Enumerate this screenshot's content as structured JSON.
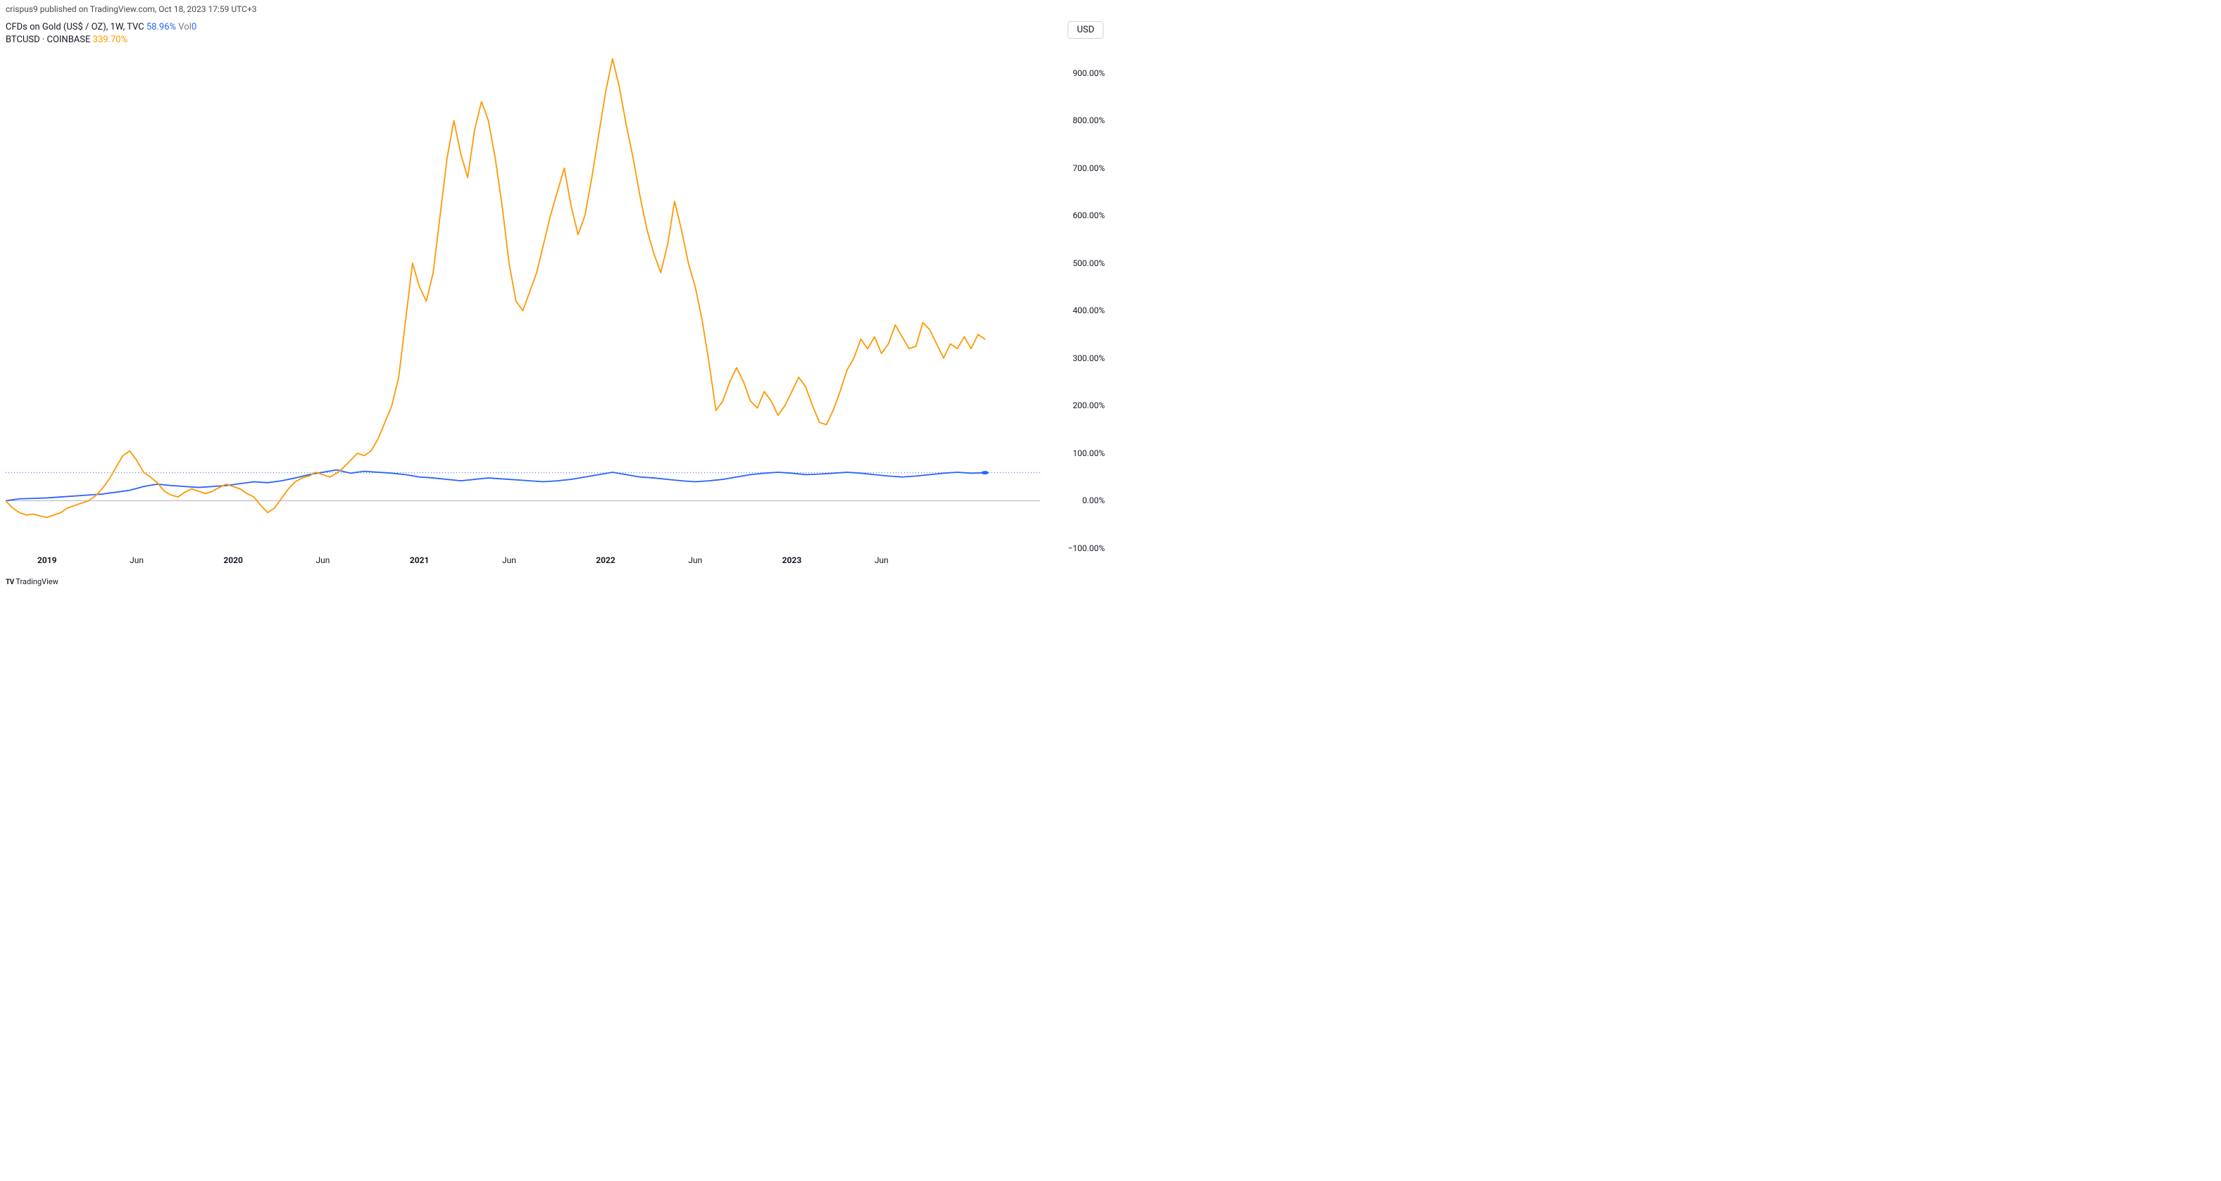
{
  "header": {
    "publish_text": "crispus9 published on TradingView.com, Oct 18, 2023 17:59 UTC+3"
  },
  "legend": {
    "row1_label": "CFDs on Gold (US$ / OZ), 1W, TVC",
    "row1_pct": "58.96%",
    "row1_vol_label": "Vol",
    "row1_vol_val": "0",
    "row2_label": "BTCUSD · COINBASE",
    "row2_pct": "339.70%"
  },
  "currency": "USD",
  "footer": "TradingView",
  "chart": {
    "type": "line",
    "background_color": "#ffffff",
    "grid_color": "#e0e3eb",
    "baseline_color": "#b2b5be",
    "baseline_value": 0,
    "reference_line_color": "#2962ff",
    "reference_line_dash": "1,3",
    "reference_value": 58.96,
    "y_axis": {
      "min": -100,
      "max": 950,
      "ticks": [
        -100,
        0,
        100,
        200,
        300,
        400,
        500,
        600,
        700,
        800,
        900
      ],
      "tick_labels": [
        "−100.00%",
        "0.00%",
        "100.00%",
        "200.00%",
        "300.00%",
        "400.00%",
        "500.00%",
        "600.00%",
        "700.00%",
        "800.00%",
        "900.00%"
      ],
      "label_fontsize": 12,
      "label_color": "#131722"
    },
    "x_axis": {
      "min": 0,
      "max": 300,
      "ticks": [
        {
          "pos": 12,
          "label": "2019",
          "bold": true
        },
        {
          "pos": 38,
          "label": "Jun",
          "bold": false
        },
        {
          "pos": 66,
          "label": "2020",
          "bold": true
        },
        {
          "pos": 92,
          "label": "Jun",
          "bold": false
        },
        {
          "pos": 120,
          "label": "2021",
          "bold": true
        },
        {
          "pos": 146,
          "label": "Jun",
          "bold": false
        },
        {
          "pos": 174,
          "label": "2022",
          "bold": true
        },
        {
          "pos": 200,
          "label": "Jun",
          "bold": false
        },
        {
          "pos": 228,
          "label": "2023",
          "bold": true
        },
        {
          "pos": 254,
          "label": "Jun",
          "bold": false
        }
      ],
      "label_fontsize": 12,
      "label_color": "#131722"
    },
    "series": [
      {
        "name": "Gold",
        "color": "#2962ff",
        "line_width": 1.8,
        "end_marker": true,
        "end_marker_size": 3.5,
        "data": [
          [
            0,
            0
          ],
          [
            4,
            4
          ],
          [
            8,
            5
          ],
          [
            12,
            6
          ],
          [
            16,
            8
          ],
          [
            20,
            10
          ],
          [
            24,
            12
          ],
          [
            28,
            14
          ],
          [
            32,
            18
          ],
          [
            36,
            22
          ],
          [
            40,
            30
          ],
          [
            44,
            35
          ],
          [
            48,
            32
          ],
          [
            52,
            30
          ],
          [
            56,
            28
          ],
          [
            60,
            30
          ],
          [
            64,
            32
          ],
          [
            68,
            36
          ],
          [
            72,
            40
          ],
          [
            76,
            38
          ],
          [
            80,
            42
          ],
          [
            84,
            48
          ],
          [
            88,
            55
          ],
          [
            92,
            60
          ],
          [
            96,
            65
          ],
          [
            100,
            58
          ],
          [
            104,
            62
          ],
          [
            108,
            60
          ],
          [
            112,
            58
          ],
          [
            116,
            55
          ],
          [
            120,
            50
          ],
          [
            124,
            48
          ],
          [
            128,
            45
          ],
          [
            132,
            42
          ],
          [
            136,
            45
          ],
          [
            140,
            48
          ],
          [
            144,
            46
          ],
          [
            148,
            44
          ],
          [
            152,
            42
          ],
          [
            156,
            40
          ],
          [
            160,
            42
          ],
          [
            164,
            45
          ],
          [
            168,
            50
          ],
          [
            172,
            55
          ],
          [
            176,
            60
          ],
          [
            180,
            55
          ],
          [
            184,
            50
          ],
          [
            188,
            48
          ],
          [
            192,
            45
          ],
          [
            196,
            42
          ],
          [
            200,
            40
          ],
          [
            204,
            42
          ],
          [
            208,
            45
          ],
          [
            212,
            50
          ],
          [
            216,
            55
          ],
          [
            220,
            58
          ],
          [
            224,
            60
          ],
          [
            228,
            58
          ],
          [
            232,
            55
          ],
          [
            236,
            56
          ],
          [
            240,
            58
          ],
          [
            244,
            60
          ],
          [
            248,
            58
          ],
          [
            252,
            55
          ],
          [
            256,
            52
          ],
          [
            260,
            50
          ],
          [
            264,
            52
          ],
          [
            268,
            55
          ],
          [
            272,
            58
          ],
          [
            276,
            60
          ],
          [
            280,
            58
          ],
          [
            284,
            58.96
          ]
        ]
      },
      {
        "name": "BTCUSD",
        "color": "#ff9800",
        "line_width": 1.8,
        "end_marker": false,
        "data": [
          [
            0,
            0
          ],
          [
            2,
            -15
          ],
          [
            4,
            -25
          ],
          [
            6,
            -30
          ],
          [
            8,
            -28
          ],
          [
            10,
            -32
          ],
          [
            12,
            -35
          ],
          [
            14,
            -30
          ],
          [
            16,
            -25
          ],
          [
            18,
            -15
          ],
          [
            20,
            -10
          ],
          [
            22,
            -5
          ],
          [
            24,
            0
          ],
          [
            26,
            10
          ],
          [
            28,
            25
          ],
          [
            30,
            45
          ],
          [
            32,
            70
          ],
          [
            34,
            95
          ],
          [
            36,
            105
          ],
          [
            38,
            85
          ],
          [
            40,
            60
          ],
          [
            42,
            50
          ],
          [
            44,
            38
          ],
          [
            46,
            20
          ],
          [
            48,
            12
          ],
          [
            50,
            8
          ],
          [
            52,
            18
          ],
          [
            54,
            25
          ],
          [
            56,
            20
          ],
          [
            58,
            15
          ],
          [
            60,
            20
          ],
          [
            62,
            28
          ],
          [
            64,
            35
          ],
          [
            66,
            30
          ],
          [
            68,
            25
          ],
          [
            70,
            15
          ],
          [
            72,
            8
          ],
          [
            74,
            -10
          ],
          [
            76,
            -25
          ],
          [
            78,
            -15
          ],
          [
            80,
            5
          ],
          [
            82,
            25
          ],
          [
            84,
            40
          ],
          [
            86,
            48
          ],
          [
            88,
            52
          ],
          [
            90,
            60
          ],
          [
            92,
            55
          ],
          [
            94,
            50
          ],
          [
            96,
            58
          ],
          [
            98,
            70
          ],
          [
            100,
            85
          ],
          [
            102,
            100
          ],
          [
            104,
            95
          ],
          [
            106,
            105
          ],
          [
            108,
            130
          ],
          [
            110,
            165
          ],
          [
            112,
            200
          ],
          [
            114,
            260
          ],
          [
            116,
            380
          ],
          [
            118,
            500
          ],
          [
            120,
            450
          ],
          [
            122,
            420
          ],
          [
            124,
            480
          ],
          [
            126,
            600
          ],
          [
            128,
            720
          ],
          [
            130,
            800
          ],
          [
            132,
            730
          ],
          [
            134,
            680
          ],
          [
            136,
            780
          ],
          [
            138,
            840
          ],
          [
            140,
            800
          ],
          [
            142,
            720
          ],
          [
            144,
            620
          ],
          [
            146,
            500
          ],
          [
            148,
            420
          ],
          [
            150,
            400
          ],
          [
            152,
            440
          ],
          [
            154,
            480
          ],
          [
            156,
            540
          ],
          [
            158,
            600
          ],
          [
            160,
            650
          ],
          [
            162,
            700
          ],
          [
            164,
            620
          ],
          [
            166,
            560
          ],
          [
            168,
            600
          ],
          [
            170,
            680
          ],
          [
            172,
            770
          ],
          [
            174,
            860
          ],
          [
            176,
            930
          ],
          [
            178,
            870
          ],
          [
            180,
            790
          ],
          [
            182,
            720
          ],
          [
            184,
            640
          ],
          [
            186,
            570
          ],
          [
            188,
            520
          ],
          [
            190,
            480
          ],
          [
            192,
            540
          ],
          [
            194,
            630
          ],
          [
            196,
            570
          ],
          [
            198,
            500
          ],
          [
            200,
            450
          ],
          [
            202,
            380
          ],
          [
            204,
            290
          ],
          [
            206,
            190
          ],
          [
            208,
            210
          ],
          [
            210,
            250
          ],
          [
            212,
            280
          ],
          [
            214,
            250
          ],
          [
            216,
            210
          ],
          [
            218,
            195
          ],
          [
            220,
            230
          ],
          [
            222,
            210
          ],
          [
            224,
            180
          ],
          [
            226,
            200
          ],
          [
            228,
            230
          ],
          [
            230,
            260
          ],
          [
            232,
            240
          ],
          [
            234,
            200
          ],
          [
            236,
            165
          ],
          [
            238,
            160
          ],
          [
            240,
            190
          ],
          [
            242,
            230
          ],
          [
            244,
            275
          ],
          [
            246,
            300
          ],
          [
            248,
            340
          ],
          [
            250,
            320
          ],
          [
            252,
            345
          ],
          [
            254,
            310
          ],
          [
            256,
            330
          ],
          [
            258,
            370
          ],
          [
            260,
            345
          ],
          [
            262,
            320
          ],
          [
            264,
            325
          ],
          [
            266,
            375
          ],
          [
            268,
            360
          ],
          [
            270,
            330
          ],
          [
            272,
            300
          ],
          [
            274,
            330
          ],
          [
            276,
            320
          ],
          [
            278,
            345
          ],
          [
            280,
            320
          ],
          [
            282,
            350
          ],
          [
            284,
            340
          ]
        ]
      }
    ]
  }
}
